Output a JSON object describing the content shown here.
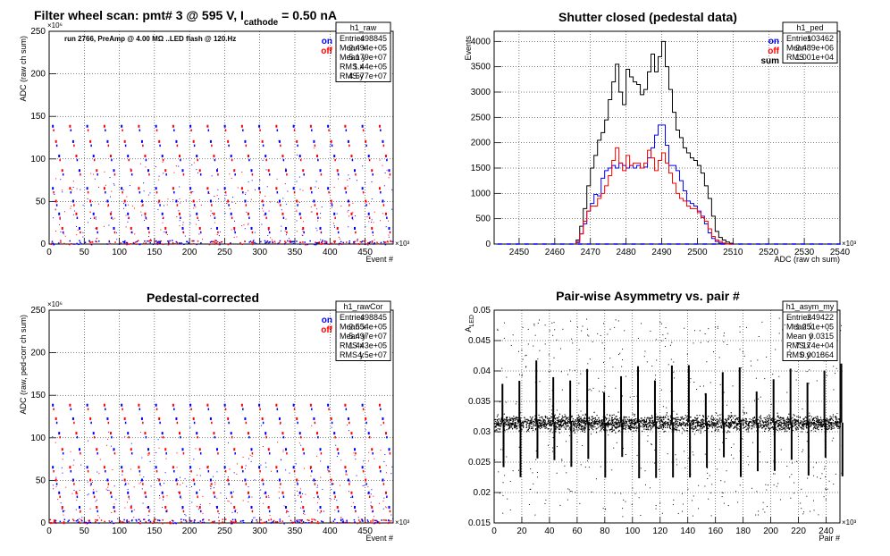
{
  "chart_data": [
    {
      "type": "scatter",
      "title": "Filter wheel scan: pmt#   3 @   595 V, I",
      "title_sub": "cathode",
      "title_tail": "   = 0.50 nA",
      "annotation": "run 2766, PreAmp @ 4.00 MΩ ..LED flash @  120.Hz",
      "xlabel": "Event #",
      "ylabel": "ADC (raw ch sum)",
      "x_exponent": "×10³",
      "y_exponent": "×10⁶",
      "xlim": [
        0,
        490
      ],
      "ylim": [
        0,
        250
      ],
      "xticks": [
        "0",
        "50",
        "100",
        "150",
        "200",
        "250",
        "300",
        "350",
        "400",
        "450"
      ],
      "yticks": [
        "0",
        "50",
        "100",
        "150",
        "200",
        "250"
      ],
      "legend": [
        {
          "name": "on",
          "color": "#0000ff"
        },
        {
          "name": "off",
          "color": "#ff0000"
        }
      ],
      "stats": {
        "name": "h1_raw",
        "rows": [
          [
            "Entries",
            "498845"
          ],
          [
            "Mean x",
            "2.494e+05"
          ],
          [
            "Mean y",
            "5.179e+07"
          ],
          [
            "RMS x",
            "1.44e+05"
          ],
          [
            "RMS y",
            "4.577e+07"
          ]
        ]
      },
      "levels": [
        138,
        120,
        103,
        86,
        65,
        50,
        35,
        18
      ],
      "period": 24.5,
      "grid": true
    },
    {
      "type": "line",
      "title": "Shutter closed (pedestal data)",
      "xlabel": "ADC (raw ch sum)",
      "ylabel": "Events",
      "x_exponent": "×10³",
      "xlim": [
        2443,
        2540
      ],
      "ylim": [
        0,
        4200
      ],
      "xticks": [
        "2450",
        "2460",
        "2470",
        "2480",
        "2490",
        "2500",
        "2510",
        "2520",
        "2530",
        "2540"
      ],
      "yticks": [
        "0",
        "500",
        "1000",
        "1500",
        "2000",
        "2500",
        "3000",
        "3500",
        "4000"
      ],
      "legend": [
        {
          "name": "on",
          "color": "#0000ff"
        },
        {
          "name": "off",
          "color": "#ff0000"
        },
        {
          "name": "sum",
          "color": "#000000"
        }
      ],
      "stats": {
        "name": "h1_ped",
        "rows": [
          [
            "Entries",
            "103462"
          ],
          [
            "Mean",
            "2.489e+06"
          ],
          [
            "RMS",
            "1.001e+04"
          ]
        ]
      },
      "bin_start": 2466,
      "bin_width": 1,
      "series": [
        {
          "name": "sum",
          "color": "#000000",
          "values": [
            80,
            350,
            700,
            1150,
            1500,
            1750,
            2050,
            2200,
            2450,
            2850,
            3200,
            3550,
            3000,
            2750,
            3450,
            3300,
            3200,
            3150,
            2950,
            3050,
            3400,
            3750,
            3400,
            3700,
            4000,
            3500,
            3050,
            2600,
            2250,
            2100,
            1900,
            1800,
            1700,
            1650,
            1550,
            1400,
            1150,
            900,
            550,
            250,
            130,
            80,
            40,
            15
          ]
        },
        {
          "name": "on",
          "color": "#0000ff",
          "values": [
            30,
            200,
            400,
            650,
            800,
            980,
            950,
            1300,
            1450,
            1500,
            1550,
            1500,
            1600,
            1550,
            1500,
            1550,
            1500,
            1550,
            1500,
            1520,
            1700,
            1900,
            2150,
            2350,
            2350,
            1950,
            1550,
            1550,
            1450,
            1250,
            1050,
            850,
            800,
            750,
            650,
            550,
            400,
            220,
            110,
            50,
            20,
            10,
            5,
            0
          ]
        },
        {
          "name": "off",
          "color": "#ff0000",
          "values": [
            50,
            200,
            450,
            650,
            750,
            750,
            900,
            1000,
            1150,
            1350,
            1650,
            1900,
            1600,
            1450,
            1750,
            1550,
            1600,
            1600,
            1500,
            1600,
            1850,
            1700,
            1450,
            1650,
            1800,
            1600,
            1400,
            1200,
            1000,
            900,
            850,
            750,
            700,
            700,
            620,
            520,
            450,
            300,
            150,
            80,
            50,
            20,
            5,
            0
          ]
        }
      ],
      "grid": true
    },
    {
      "type": "scatter",
      "title": "Pedestal-corrected",
      "xlabel": "Event #",
      "ylabel": "ADC (raw, ped-corr ch sum)",
      "x_exponent": "×10³",
      "y_exponent": "×10⁶",
      "xlim": [
        0,
        490
      ],
      "ylim": [
        0,
        250
      ],
      "xticks": [
        "0",
        "50",
        "100",
        "150",
        "200",
        "250",
        "300",
        "350",
        "400",
        "450"
      ],
      "yticks": [
        "0",
        "50",
        "100",
        "150",
        "200",
        "250"
      ],
      "legend": [
        {
          "name": "on",
          "color": "#0000ff"
        },
        {
          "name": "off",
          "color": "#ff0000"
        }
      ],
      "stats": {
        "name": "h1_rawCor",
        "rows": [
          [
            "Entries",
            "498845"
          ],
          [
            "Mean x",
            "2.554e+05"
          ],
          [
            "Mean y",
            "5.497e+07"
          ],
          [
            "RMS x",
            "1.443e+05"
          ],
          [
            "RMS y",
            "4.5e+07"
          ]
        ]
      },
      "levels": [
        138,
        122,
        105,
        86,
        65,
        50,
        35,
        18
      ],
      "period": 24.5,
      "grid": true
    },
    {
      "type": "scatter",
      "title": "Pair-wise Asymmetry vs. pair #",
      "xlabel": "Pair #",
      "ylabel": "A",
      "ylabel_sub": "LED",
      "x_exponent": "×10³",
      "xlim": [
        0,
        250
      ],
      "ylim": [
        0.015,
        0.05
      ],
      "xticks": [
        "0",
        "20",
        "40",
        "60",
        "80",
        "100",
        "120",
        "140",
        "160",
        "180",
        "200",
        "220",
        "240"
      ],
      "yticks": [
        "0.015",
        "0.02",
        "0.025",
        "0.03",
        "0.035",
        "0.04",
        "0.045",
        "0.05"
      ],
      "stats": {
        "name": "h1_asym_my",
        "rows": [
          [
            "Entries",
            "249422"
          ],
          [
            "Mean x",
            "1.251e+05"
          ],
          [
            "Mean y",
            "0.0315"
          ],
          [
            "RMS x",
            "7.174e+04"
          ],
          [
            "RMS y",
            "0.001864"
          ]
        ]
      },
      "band_center": 0.0315,
      "band_halfwidth": 0.0012,
      "spike_period": 12.25,
      "grid": true
    }
  ]
}
